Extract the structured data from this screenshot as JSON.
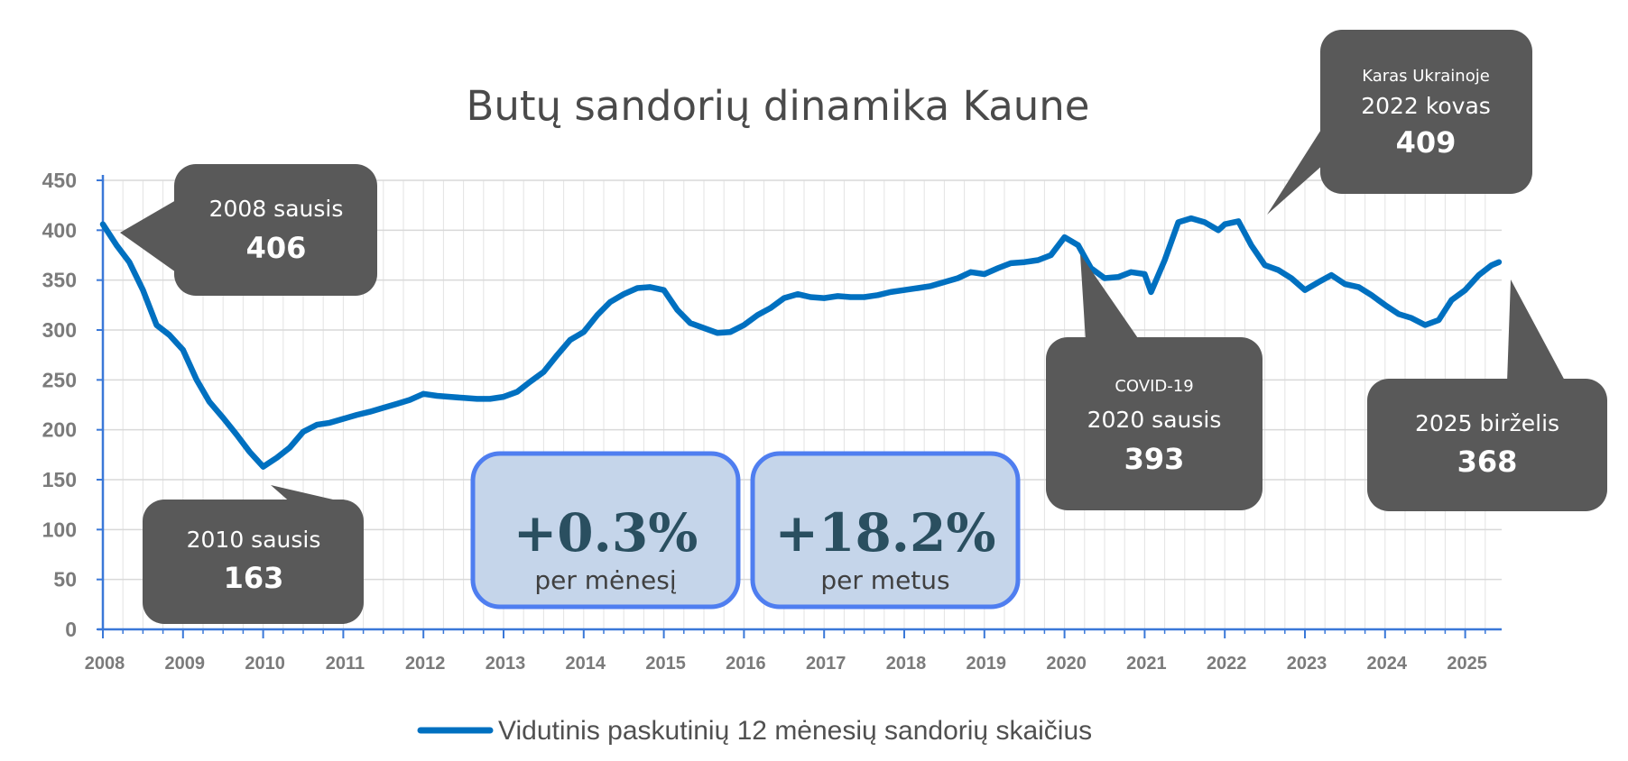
{
  "chart_data": {
    "type": "line",
    "title": "Butų sandorių dinamika Kaune",
    "xlabel": "",
    "ylabel": "",
    "ylim": [
      0,
      450
    ],
    "y_ticks": [
      "0",
      "50",
      "100",
      "150",
      "200",
      "250",
      "300",
      "350",
      "400",
      "450"
    ],
    "x_ticks": [
      "2008",
      "2009",
      "2010",
      "2011",
      "2012",
      "2013",
      "2014",
      "2015",
      "2016",
      "2017",
      "2018",
      "2019",
      "2020",
      "2021",
      "2022",
      "2023",
      "2024",
      "2025"
    ],
    "grid": true,
    "legend_position": "bottom",
    "series": [
      {
        "name": "Vidutinis paskutinių 12 mėnesių sandorių skaičius",
        "color": "#0070c0",
        "points": [
          [
            2008.0,
            406
          ],
          [
            2008.17,
            385
          ],
          [
            2008.33,
            368
          ],
          [
            2008.5,
            340
          ],
          [
            2008.67,
            305
          ],
          [
            2008.83,
            295
          ],
          [
            2009.0,
            280
          ],
          [
            2009.17,
            250
          ],
          [
            2009.33,
            228
          ],
          [
            2009.5,
            212
          ],
          [
            2009.67,
            195
          ],
          [
            2009.83,
            178
          ],
          [
            2010.0,
            163
          ],
          [
            2010.17,
            172
          ],
          [
            2010.33,
            182
          ],
          [
            2010.5,
            198
          ],
          [
            2010.67,
            205
          ],
          [
            2010.83,
            207
          ],
          [
            2011.0,
            211
          ],
          [
            2011.17,
            215
          ],
          [
            2011.33,
            218
          ],
          [
            2011.5,
            222
          ],
          [
            2011.67,
            226
          ],
          [
            2011.83,
            230
          ],
          [
            2012.0,
            236
          ],
          [
            2012.17,
            234
          ],
          [
            2012.33,
            233
          ],
          [
            2012.5,
            232
          ],
          [
            2012.67,
            231
          ],
          [
            2012.83,
            231
          ],
          [
            2013.0,
            233
          ],
          [
            2013.17,
            238
          ],
          [
            2013.33,
            248
          ],
          [
            2013.5,
            258
          ],
          [
            2013.67,
            275
          ],
          [
            2013.83,
            290
          ],
          [
            2014.0,
            298
          ],
          [
            2014.17,
            315
          ],
          [
            2014.33,
            328
          ],
          [
            2014.5,
            336
          ],
          [
            2014.67,
            342
          ],
          [
            2014.83,
            343
          ],
          [
            2015.0,
            340
          ],
          [
            2015.17,
            320
          ],
          [
            2015.33,
            307
          ],
          [
            2015.5,
            302
          ],
          [
            2015.67,
            297
          ],
          [
            2015.83,
            298
          ],
          [
            2016.0,
            305
          ],
          [
            2016.17,
            315
          ],
          [
            2016.33,
            322
          ],
          [
            2016.5,
            332
          ],
          [
            2016.67,
            336
          ],
          [
            2016.83,
            333
          ],
          [
            2017.0,
            332
          ],
          [
            2017.17,
            334
          ],
          [
            2017.33,
            333
          ],
          [
            2017.5,
            333
          ],
          [
            2017.67,
            335
          ],
          [
            2017.83,
            338
          ],
          [
            2018.0,
            340
          ],
          [
            2018.17,
            342
          ],
          [
            2018.33,
            344
          ],
          [
            2018.5,
            348
          ],
          [
            2018.67,
            352
          ],
          [
            2018.83,
            358
          ],
          [
            2019.0,
            356
          ],
          [
            2019.17,
            362
          ],
          [
            2019.33,
            367
          ],
          [
            2019.5,
            368
          ],
          [
            2019.67,
            370
          ],
          [
            2019.83,
            375
          ],
          [
            2020.0,
            393
          ],
          [
            2020.17,
            385
          ],
          [
            2020.33,
            362
          ],
          [
            2020.5,
            352
          ],
          [
            2020.67,
            353
          ],
          [
            2020.83,
            358
          ],
          [
            2021.0,
            356
          ],
          [
            2021.08,
            338
          ],
          [
            2021.25,
            370
          ],
          [
            2021.42,
            408
          ],
          [
            2021.58,
            412
          ],
          [
            2021.75,
            408
          ],
          [
            2021.92,
            400
          ],
          [
            2022.0,
            406
          ],
          [
            2022.17,
            409
          ],
          [
            2022.33,
            385
          ],
          [
            2022.5,
            365
          ],
          [
            2022.67,
            360
          ],
          [
            2022.83,
            352
          ],
          [
            2023.0,
            340
          ],
          [
            2023.17,
            348
          ],
          [
            2023.33,
            355
          ],
          [
            2023.5,
            346
          ],
          [
            2023.67,
            343
          ],
          [
            2023.83,
            335
          ],
          [
            2024.0,
            325
          ],
          [
            2024.17,
            316
          ],
          [
            2024.33,
            312
          ],
          [
            2024.5,
            305
          ],
          [
            2024.67,
            310
          ],
          [
            2024.83,
            330
          ],
          [
            2025.0,
            340
          ],
          [
            2025.17,
            355
          ],
          [
            2025.33,
            365
          ],
          [
            2025.42,
            368
          ]
        ]
      }
    ],
    "annotations": [
      {
        "id": "a2008",
        "lines": [
          "2008 sausis"
        ],
        "value": "406",
        "point": [
          2008.0,
          406
        ]
      },
      {
        "id": "a2010",
        "lines": [
          "2010 sausis"
        ],
        "value": "163",
        "point": [
          2010.0,
          163
        ]
      },
      {
        "id": "a2020",
        "small": "COVID-19",
        "lines": [
          "2020 sausis"
        ],
        "value": "393",
        "point": [
          2020.0,
          393
        ]
      },
      {
        "id": "a2022",
        "small": "Karas Ukrainoje",
        "lines": [
          "2022 kovas"
        ],
        "value": "409",
        "point": [
          2022.17,
          409
        ]
      },
      {
        "id": "a2025",
        "lines": [
          "2025 birželis"
        ],
        "value": "368",
        "point": [
          2025.42,
          368
        ]
      }
    ],
    "stats": [
      {
        "value": "+0.3%",
        "label": "per mėnesį"
      },
      {
        "value": "+18.2%",
        "label": "per metus"
      }
    ]
  }
}
